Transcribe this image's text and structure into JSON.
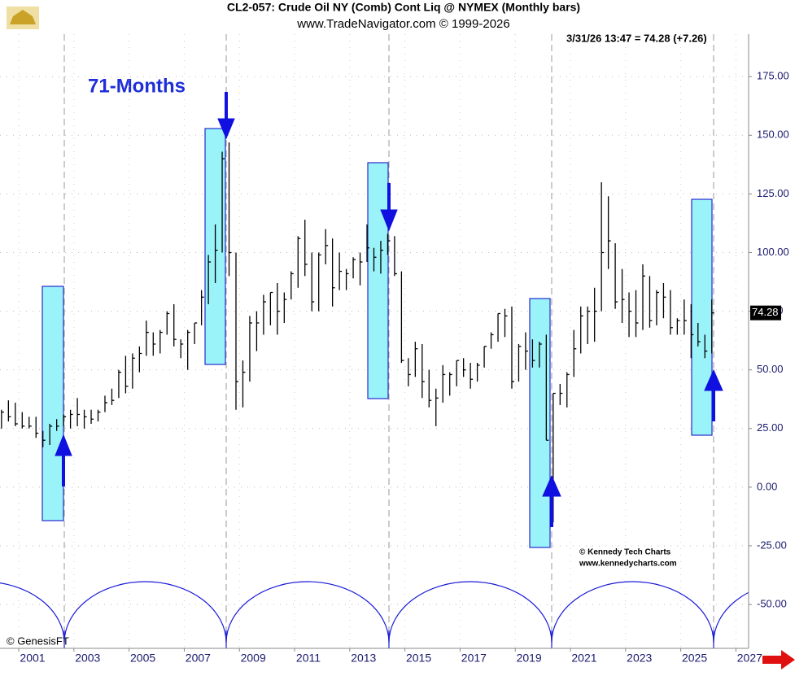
{
  "chart_data": {
    "type": "hlc",
    "title": "CL2-057:  Crude Oil NY (Comb) Cont Liq @ NYMEX  (Monthly bars)",
    "subtitle": "www.TradeNavigator.com © 1999-2026",
    "quote": "3/31/26 13:47 = 74.28 (+7.26)",
    "annotation": "71-Months",
    "credits": [
      "© Kennedy Tech Charts",
      "www.kennedycharts.com",
      "© GenesisFT"
    ],
    "last_price": 74.28,
    "color": "#000000",
    "grid": true,
    "xlim": [
      2000.32,
      2027.46
    ],
    "ylim": [
      -68.7,
      193.1
    ],
    "xticks": [
      2001,
      2003,
      2005,
      2007,
      2009,
      2011,
      2013,
      2015,
      2017,
      2019,
      2021,
      2023,
      2025,
      2027
    ],
    "yticks": [
      {
        "value": -50,
        "label": "-50.00"
      },
      {
        "value": -25,
        "label": "-25.00"
      },
      {
        "value": 0,
        "label": "0.00"
      },
      {
        "value": 25,
        "label": "25.00"
      },
      {
        "value": 50,
        "label": "50.00"
      },
      {
        "value": 75,
        "label": "75.00"
      },
      {
        "value": 100,
        "label": "100.00"
      },
      {
        "value": 125,
        "label": "125.00"
      },
      {
        "value": 150,
        "label": "150.00"
      },
      {
        "value": 175,
        "label": "175.00"
      }
    ],
    "x": [
      2000.375,
      2000.625,
      2000.875,
      2001.125,
      2001.375,
      2001.625,
      2001.875,
      2002.125,
      2002.375,
      2002.625,
      2002.875,
      2003.125,
      2003.375,
      2003.625,
      2003.875,
      2004.125,
      2004.375,
      2004.625,
      2004.875,
      2005.125,
      2005.375,
      2005.625,
      2005.875,
      2006.125,
      2006.375,
      2006.625,
      2006.875,
      2007.125,
      2007.375,
      2007.625,
      2007.875,
      2008.125,
      2008.375,
      2008.625,
      2008.875,
      2009.125,
      2009.375,
      2009.625,
      2009.875,
      2010.125,
      2010.375,
      2010.625,
      2010.875,
      2011.125,
      2011.375,
      2011.625,
      2011.875,
      2012.125,
      2012.375,
      2012.625,
      2012.875,
      2013.125,
      2013.375,
      2013.625,
      2013.875,
      2014.125,
      2014.375,
      2014.625,
      2014.875,
      2015.125,
      2015.375,
      2015.625,
      2015.875,
      2016.125,
      2016.375,
      2016.625,
      2016.875,
      2017.125,
      2017.375,
      2017.625,
      2017.875,
      2018.125,
      2018.375,
      2018.625,
      2018.875,
      2019.125,
      2019.375,
      2019.625,
      2019.875,
      2020.125,
      2020.375,
      2020.625,
      2020.875,
      2021.125,
      2021.375,
      2021.625,
      2021.875,
      2022.125,
      2022.375,
      2022.625,
      2022.875,
      2023.125,
      2023.375,
      2023.625,
      2023.875,
      2024.125,
      2024.375,
      2024.625,
      2024.875,
      2025.125,
      2025.375,
      2025.625,
      2025.875,
      2026.125
    ],
    "high": [
      33,
      37,
      36,
      32,
      30,
      30,
      24,
      27,
      29,
      31,
      33,
      38,
      33,
      33,
      33,
      39,
      42,
      50,
      56,
      57,
      60,
      71,
      66,
      67,
      75,
      78,
      63,
      67,
      70,
      84,
      99,
      112,
      143,
      147,
      100,
      54,
      73,
      75,
      82,
      83,
      87,
      83,
      92,
      107,
      114,
      100,
      100,
      110,
      106,
      100,
      93,
      98,
      100,
      112,
      102,
      105,
      108,
      107,
      92,
      55,
      62,
      61,
      50,
      42,
      52,
      49,
      54,
      55,
      53,
      53,
      60,
      66,
      74,
      76,
      77,
      61,
      66,
      63,
      62,
      65,
      40,
      44,
      49,
      67,
      77,
      77,
      85,
      130,
      124,
      104,
      93,
      83,
      84,
      95,
      90,
      84,
      87,
      84,
      72,
      80,
      78,
      70,
      65,
      80
    ],
    "low": [
      25,
      28,
      26,
      25,
      25,
      21,
      17,
      18,
      24,
      26,
      25,
      26,
      25,
      27,
      28,
      32,
      35,
      38,
      40,
      42,
      49,
      56,
      56,
      57,
      65,
      60,
      55,
      50,
      61,
      69,
      78,
      87,
      100,
      90,
      33,
      34,
      45,
      58,
      65,
      69,
      65,
      70,
      80,
      85,
      90,
      75,
      75,
      95,
      77,
      84,
      84,
      89,
      86,
      96,
      92,
      91,
      99,
      90,
      53,
      43,
      47,
      38,
      34,
      26,
      36,
      39,
      43,
      47,
      42,
      45,
      51,
      59,
      62,
      64,
      42,
      45,
      50,
      51,
      51,
      20,
      -15,
      35,
      34,
      47,
      57,
      61,
      62,
      75,
      93,
      76,
      70,
      64,
      64,
      67,
      68,
      69,
      72,
      65,
      65,
      65,
      55,
      60,
      55,
      57
    ],
    "close": [
      32,
      30,
      27,
      26,
      26,
      23,
      20,
      26,
      26,
      30,
      31,
      31,
      30,
      29,
      32,
      36,
      37,
      49,
      43,
      55,
      57,
      66,
      61,
      66,
      74,
      63,
      61,
      66,
      70,
      81,
      96,
      101,
      140,
      100,
      45,
      49,
      70,
      70,
      79,
      83,
      75,
      80,
      91,
      106,
      95,
      79,
      99,
      103,
      85,
      92,
      91,
      97,
      96,
      102,
      98,
      101,
      105,
      91,
      54,
      48,
      59,
      45,
      37,
      38,
      48,
      48,
      54,
      50,
      46,
      52,
      60,
      65,
      74,
      73,
      45,
      60,
      58,
      54,
      61,
      20,
      40,
      40,
      48,
      59,
      73,
      75,
      75,
      100,
      105,
      79,
      80,
      75,
      70,
      90,
      71,
      83,
      81,
      68,
      71,
      71,
      65,
      62,
      58,
      74.28
    ]
  }
}
